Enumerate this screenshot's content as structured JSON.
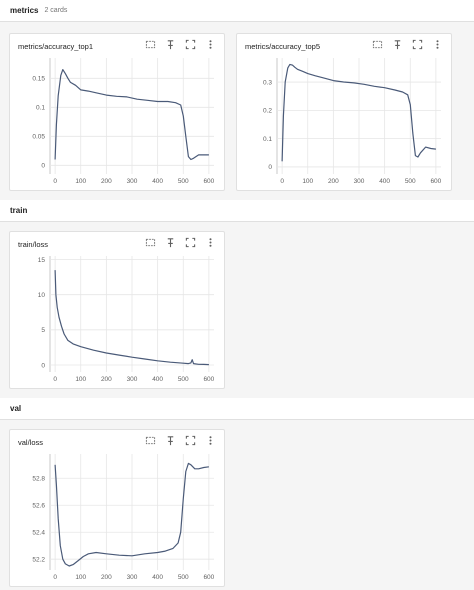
{
  "sections": [
    {
      "title": "metrics",
      "subtitle": "2 cards"
    },
    {
      "title": "train",
      "subtitle": ""
    },
    {
      "title": "val",
      "subtitle": ""
    }
  ],
  "cards": [
    {
      "title": "metrics/accuracy_top1"
    },
    {
      "title": "metrics/accuracy_top5"
    },
    {
      "title": "train/loss"
    },
    {
      "title": "val/loss"
    }
  ],
  "icons": [
    "expand-icon",
    "pin-icon",
    "fullscreen-icon",
    "more-vert-icon"
  ],
  "colors": {
    "line": "#4a5a78",
    "grid": "#e6e6e6",
    "axis_text": "#616161"
  },
  "chart_data": [
    {
      "type": "line",
      "title": "metrics/accuracy_top1",
      "xlim": [
        -20,
        620
      ],
      "ylim": [
        -0.015,
        0.185
      ],
      "xticks": [
        0,
        100,
        200,
        300,
        400,
        500,
        600
      ],
      "yticks": [
        0,
        0.05,
        0.1,
        0.15
      ],
      "ytick_labels": [
        "0",
        "0.05",
        "0.1",
        "0.15"
      ],
      "x": [
        0,
        5,
        12,
        22,
        30,
        40,
        50,
        60,
        80,
        100,
        130,
        160,
        200,
        240,
        280,
        320,
        360,
        400,
        440,
        470,
        490,
        500,
        510,
        520,
        530,
        540,
        560,
        580,
        600
      ],
      "y": [
        0.01,
        0.07,
        0.12,
        0.155,
        0.165,
        0.158,
        0.15,
        0.143,
        0.138,
        0.13,
        0.128,
        0.125,
        0.121,
        0.119,
        0.118,
        0.114,
        0.112,
        0.11,
        0.11,
        0.108,
        0.104,
        0.085,
        0.05,
        0.015,
        0.01,
        0.012,
        0.018,
        0.018,
        0.018
      ]
    },
    {
      "type": "line",
      "title": "metrics/accuracy_top5",
      "xlim": [
        -20,
        620
      ],
      "ylim": [
        -0.025,
        0.385
      ],
      "xticks": [
        0,
        100,
        200,
        300,
        400,
        500,
        600
      ],
      "yticks": [
        0,
        0.1,
        0.2,
        0.3
      ],
      "ytick_labels": [
        "0",
        "0.1",
        "0.2",
        "0.3"
      ],
      "x": [
        0,
        5,
        12,
        22,
        30,
        40,
        50,
        60,
        80,
        100,
        130,
        160,
        200,
        240,
        280,
        320,
        360,
        400,
        440,
        470,
        490,
        500,
        510,
        520,
        530,
        540,
        560,
        580,
        600
      ],
      "y": [
        0.02,
        0.18,
        0.3,
        0.35,
        0.362,
        0.36,
        0.352,
        0.345,
        0.338,
        0.33,
        0.322,
        0.315,
        0.305,
        0.3,
        0.297,
        0.292,
        0.285,
        0.28,
        0.272,
        0.265,
        0.255,
        0.22,
        0.12,
        0.04,
        0.035,
        0.05,
        0.07,
        0.065,
        0.063
      ]
    },
    {
      "type": "line",
      "title": "train/loss",
      "xlim": [
        -20,
        620
      ],
      "ylim": [
        -1,
        15.5
      ],
      "xticks": [
        0,
        100,
        200,
        300,
        400,
        500,
        600
      ],
      "yticks": [
        0,
        5,
        10,
        15
      ],
      "ytick_labels": [
        "0",
        "5",
        "10",
        "15"
      ],
      "x": [
        0,
        3,
        8,
        15,
        25,
        35,
        50,
        70,
        100,
        150,
        200,
        250,
        300,
        350,
        400,
        450,
        500,
        520,
        530,
        535,
        540,
        560,
        580,
        600
      ],
      "y": [
        13.5,
        10,
        8.2,
        6.8,
        5.5,
        4.4,
        3.5,
        3.0,
        2.6,
        2.1,
        1.7,
        1.4,
        1.1,
        0.85,
        0.6,
        0.4,
        0.25,
        0.2,
        0.3,
        0.75,
        0.2,
        0.1,
        0.08,
        0.05
      ]
    },
    {
      "type": "line",
      "title": "val/loss",
      "xlim": [
        -20,
        620
      ],
      "ylim": [
        52.12,
        52.98
      ],
      "xticks": [
        0,
        100,
        200,
        300,
        400,
        500,
        600
      ],
      "yticks": [
        52.2,
        52.4,
        52.6,
        52.8
      ],
      "ytick_labels": [
        "52.2",
        "52.4",
        "52.6",
        "52.8"
      ],
      "x": [
        0,
        5,
        12,
        20,
        30,
        40,
        55,
        70,
        90,
        110,
        130,
        160,
        200,
        250,
        300,
        350,
        400,
        430,
        460,
        480,
        490,
        500,
        510,
        520,
        530,
        545,
        560,
        580,
        600
      ],
      "y": [
        52.9,
        52.75,
        52.5,
        52.3,
        52.2,
        52.165,
        52.15,
        52.16,
        52.19,
        52.22,
        52.24,
        52.25,
        52.24,
        52.23,
        52.225,
        52.24,
        52.25,
        52.26,
        52.28,
        52.32,
        52.4,
        52.65,
        52.85,
        52.91,
        52.9,
        52.87,
        52.87,
        52.88,
        52.885
      ]
    }
  ]
}
